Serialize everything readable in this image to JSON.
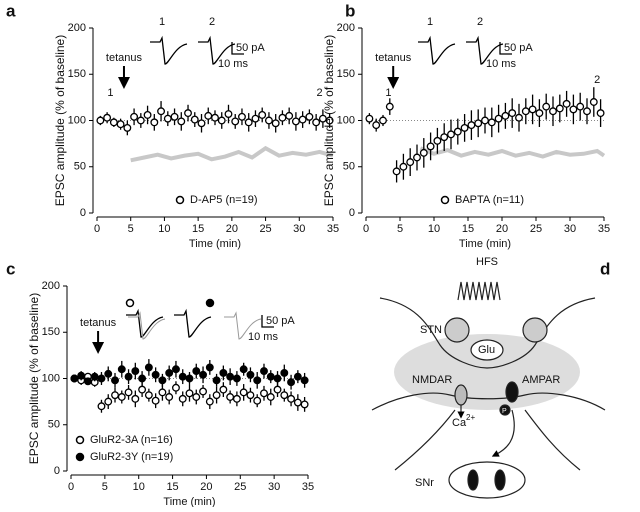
{
  "chart_data": [
    {
      "type": "scatter",
      "panel": "a",
      "xlabel": "Time (min)",
      "ylabel": "EPSC amplitude (% of baseline)",
      "xlim": [
        0,
        35
      ],
      "ylim": [
        0,
        200
      ],
      "xticks": [
        0,
        5,
        10,
        15,
        20,
        25,
        30,
        35
      ],
      "yticks": [
        0,
        50,
        100,
        150,
        200
      ],
      "reference_line": 100,
      "annotations": [
        "tetanus",
        "1",
        "2"
      ],
      "trace_labels": [
        "1",
        "2"
      ],
      "scale_bar": [
        "50 pA",
        "10 ms"
      ],
      "x": [
        0.5,
        1.5,
        2.5,
        3.5,
        4.5,
        5.5,
        6.5,
        7.5,
        8.5,
        9.5,
        10.5,
        11.5,
        12.5,
        13.5,
        14.5,
        15.5,
        16.5,
        17.5,
        18.5,
        19.5,
        20.5,
        21.5,
        22.5,
        23.5,
        24.5,
        25.5,
        26.5,
        27.5,
        28.5,
        29.5,
        30.5,
        31.5,
        32.5,
        33.5,
        34.5
      ],
      "series": [
        {
          "name": "D-AP5 (n=19)",
          "color": "#000000",
          "filled": false,
          "values": [
            100,
            103,
            98,
            96,
            92,
            104,
            100,
            106,
            98,
            110,
            102,
            104,
            99,
            108,
            101,
            97,
            105,
            103,
            100,
            107,
            99,
            104,
            98,
            102,
            106,
            100,
            97,
            103,
            105,
            99,
            101,
            104,
            98,
            102,
            100
          ],
          "errors": [
            5,
            6,
            5,
            6,
            8,
            9,
            8,
            10,
            9,
            11,
            8,
            9,
            10,
            9,
            8,
            10,
            9,
            8,
            9,
            10,
            8,
            9,
            10,
            9,
            8,
            9,
            10,
            8,
            9,
            10,
            9,
            8,
            9,
            10,
            8
          ]
        }
      ],
      "reference": {
        "color": "#c8c8c8",
        "x": [
          5,
          7,
          9,
          11,
          13,
          15,
          17,
          19,
          21,
          23,
          25,
          27,
          29,
          31,
          33,
          35
        ],
        "values": [
          57,
          60,
          63,
          59,
          62,
          64,
          58,
          61,
          66,
          60,
          70,
          62,
          65,
          63,
          66,
          62
        ]
      }
    },
    {
      "type": "scatter",
      "panel": "b",
      "xlabel": "Time (min)",
      "ylabel": "EPSC amplitude (% of baseline)",
      "xlim": [
        0,
        35
      ],
      "ylim": [
        0,
        200
      ],
      "xticks": [
        0,
        5,
        10,
        15,
        20,
        25,
        30,
        35
      ],
      "yticks": [
        0,
        50,
        100,
        150,
        200
      ],
      "reference_line": 100,
      "annotations": [
        "tetanus",
        "1",
        "2"
      ],
      "trace_labels": [
        "1",
        "2"
      ],
      "scale_bar": [
        "50 pA",
        "10 ms"
      ],
      "x": [
        0.5,
        1.5,
        2.5,
        3.5,
        4.5,
        5.5,
        6.5,
        7.5,
        8.5,
        9.5,
        10.5,
        11.5,
        12.5,
        13.5,
        14.5,
        15.5,
        16.5,
        17.5,
        18.5,
        19.5,
        20.5,
        21.5,
        22.5,
        23.5,
        24.5,
        25.5,
        26.5,
        27.5,
        28.5,
        29.5,
        30.5,
        31.5,
        32.5,
        33.5,
        34.5
      ],
      "series": [
        {
          "name": "BAPTA (n=11)",
          "color": "#000000",
          "filled": false,
          "values": [
            102,
            95,
            100,
            115,
            45,
            50,
            55,
            60,
            65,
            72,
            78,
            82,
            85,
            88,
            92,
            95,
            97,
            100,
            98,
            102,
            105,
            108,
            103,
            110,
            112,
            108,
            115,
            110,
            113,
            118,
            112,
            115,
            110,
            120,
            108
          ],
          "errors": [
            6,
            7,
            6,
            9,
            12,
            14,
            15,
            14,
            16,
            15,
            14,
            15,
            16,
            14,
            15,
            16,
            15,
            14,
            16,
            15,
            14,
            16,
            15,
            14,
            16,
            15,
            14,
            16,
            15,
            14,
            16,
            15,
            14,
            16,
            15
          ]
        }
      ],
      "reference": {
        "color": "#c8c8c8",
        "x": [
          8,
          10,
          12,
          14,
          16,
          18,
          20,
          22,
          24,
          26,
          28,
          30,
          32,
          34,
          35
        ],
        "values": [
          70,
          64,
          68,
          62,
          66,
          63,
          67,
          62,
          65,
          61,
          66,
          63,
          64,
          67,
          62
        ]
      }
    },
    {
      "type": "scatter",
      "panel": "c",
      "xlabel": "Time (min)",
      "ylabel": "EPSC amplitude (% of baseline)",
      "xlim": [
        0,
        35
      ],
      "ylim": [
        0,
        200
      ],
      "xticks": [
        0,
        5,
        10,
        15,
        20,
        25,
        30,
        35
      ],
      "yticks": [
        0,
        50,
        100,
        150,
        200
      ],
      "reference_line": 100,
      "annotations": [
        "tetanus"
      ],
      "scale_bar": [
        "50 pA",
        "10 ms"
      ],
      "x": [
        0.5,
        1.5,
        2.5,
        3.5,
        4.5,
        5.5,
        6.5,
        7.5,
        8.5,
        9.5,
        10.5,
        11.5,
        12.5,
        13.5,
        14.5,
        15.5,
        16.5,
        17.5,
        18.5,
        19.5,
        20.5,
        21.5,
        22.5,
        23.5,
        24.5,
        25.5,
        26.5,
        27.5,
        28.5,
        29.5,
        30.5,
        31.5,
        32.5,
        33.5,
        34.5
      ],
      "series": [
        {
          "name": "GluR2-3A (n=16)",
          "color": "#000000",
          "filled": false,
          "values": [
            100,
            98,
            102,
            96,
            70,
            75,
            82,
            80,
            85,
            78,
            88,
            82,
            76,
            85,
            80,
            90,
            78,
            84,
            80,
            86,
            75,
            82,
            88,
            80,
            78,
            85,
            82,
            76,
            84,
            80,
            88,
            82,
            78,
            74,
            72
          ],
          "errors": [
            4,
            5,
            4,
            5,
            7,
            8,
            8,
            7,
            8,
            9,
            8,
            7,
            8,
            9,
            8,
            7,
            8,
            9,
            8,
            7,
            8,
            9,
            8,
            7,
            8,
            9,
            8,
            7,
            8,
            9,
            8,
            7,
            8,
            9,
            8
          ]
        },
        {
          "name": "GluR2-3Y (n=19)",
          "color": "#000000",
          "filled": true,
          "values": [
            100,
            103,
            97,
            102,
            100,
            105,
            98,
            110,
            102,
            108,
            100,
            112,
            104,
            98,
            106,
            110,
            102,
            100,
            108,
            104,
            112,
            98,
            106,
            102,
            100,
            110,
            104,
            98,
            108,
            102,
            100,
            106,
            96,
            102,
            98
          ],
          "errors": [
            4,
            5,
            4,
            5,
            7,
            8,
            8,
            9,
            8,
            9,
            8,
            9,
            8,
            7,
            8,
            9,
            8,
            7,
            8,
            9,
            8,
            7,
            8,
            9,
            8,
            7,
            8,
            9,
            8,
            7,
            8,
            9,
            8,
            7,
            8
          ]
        }
      ]
    }
  ],
  "diagram": {
    "panel": "d",
    "labels": [
      "HFS",
      "STN",
      "Glu",
      "NMDAR",
      "AMPAR",
      "Ca",
      "2+",
      "P",
      "SNr"
    ]
  }
}
